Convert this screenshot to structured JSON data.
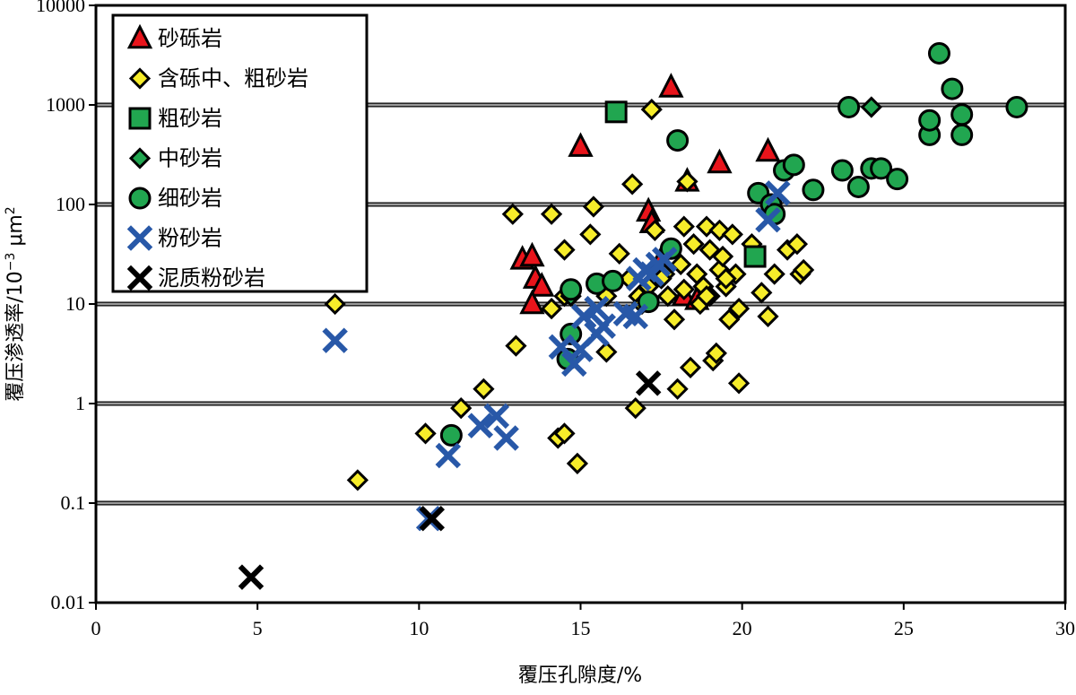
{
  "chart_data": {
    "type": "scatter",
    "x_scale": "linear",
    "y_scale": "log",
    "xlim": [
      0,
      30
    ],
    "ylim": [
      0.01,
      10000
    ],
    "xlabel": "覆压孔隙度/%",
    "ylabel_main": "覆压渗透率/10",
    "ylabel_exp": "−3",
    "ylabel_unit": " μm",
    "ylabel_sq": "2",
    "x_ticks": [
      "0",
      "5",
      "10",
      "15",
      "20",
      "25",
      "30"
    ],
    "y_ticks": [
      "0.01",
      "0.1",
      "1",
      "10",
      "100",
      "1000",
      "10000"
    ],
    "grid": "horizontal",
    "legend_position": "top-left",
    "series": [
      {
        "name": "砂砾岩",
        "marker": "triangle",
        "color": "#e8141b",
        "points": [
          [
            13.2,
            28
          ],
          [
            13.5,
            30
          ],
          [
            13.6,
            18
          ],
          [
            13.8,
            15
          ],
          [
            13.5,
            10
          ],
          [
            15,
            380
          ],
          [
            17.1,
            85
          ],
          [
            17.2,
            65
          ],
          [
            17.8,
            1500
          ],
          [
            18.3,
            170
          ],
          [
            19.3,
            260
          ],
          [
            20.8,
            340
          ],
          [
            17.5,
            28
          ],
          [
            18.2,
            12
          ],
          [
            18.6,
            11
          ]
        ]
      },
      {
        "name": "含砾中、粗砂岩",
        "marker": "diamond",
        "color": "#f6ec2a",
        "points": [
          [
            7.4,
            10
          ],
          [
            8.1,
            0.17
          ],
          [
            10.2,
            0.5
          ],
          [
            11.3,
            0.9
          ],
          [
            12,
            1.4
          ],
          [
            12.9,
            80
          ],
          [
            13,
            3.8
          ],
          [
            14.1,
            80
          ],
          [
            14.3,
            0.45
          ],
          [
            14.5,
            0.5
          ],
          [
            14.5,
            35
          ],
          [
            14.1,
            9
          ],
          [
            14.9,
            0.25
          ],
          [
            15.3,
            50
          ],
          [
            15.4,
            95
          ],
          [
            15.8,
            3.3
          ],
          [
            16.2,
            32
          ],
          [
            16.5,
            18
          ],
          [
            16.7,
            0.9
          ],
          [
            16.6,
            160
          ],
          [
            16.8,
            12
          ],
          [
            17.1,
            15
          ],
          [
            17.2,
            900
          ],
          [
            17.3,
            55
          ],
          [
            17.6,
            20
          ],
          [
            17.7,
            12
          ],
          [
            17.9,
            7
          ],
          [
            18,
            1.4
          ],
          [
            18.1,
            25
          ],
          [
            18.2,
            14
          ],
          [
            18.2,
            60
          ],
          [
            18.4,
            2.3
          ],
          [
            18.5,
            40
          ],
          [
            18.6,
            20
          ],
          [
            18.7,
            10
          ],
          [
            18.8,
            15
          ],
          [
            18.9,
            60
          ],
          [
            19,
            35
          ],
          [
            19,
            12
          ],
          [
            19.1,
            2.7
          ],
          [
            19.2,
            3.2
          ],
          [
            19.3,
            22
          ],
          [
            19.3,
            55
          ],
          [
            19.4,
            30
          ],
          [
            19.5,
            15
          ],
          [
            19.6,
            7
          ],
          [
            19.7,
            50
          ],
          [
            19.8,
            20
          ],
          [
            19.9,
            9
          ],
          [
            19.9,
            1.6
          ],
          [
            20.3,
            40
          ],
          [
            20.6,
            13
          ],
          [
            20.8,
            7.5
          ],
          [
            21,
            20
          ],
          [
            21.4,
            35
          ],
          [
            21.7,
            40
          ],
          [
            21.8,
            20
          ],
          [
            21.9,
            22
          ],
          [
            18.3,
            170
          ],
          [
            15.8,
            12
          ],
          [
            14.5,
            12
          ],
          [
            16.9,
            10
          ],
          [
            17.5,
            18
          ],
          [
            18.9,
            12
          ],
          [
            19.5,
            18
          ]
        ]
      },
      {
        "name": "粗砂岩",
        "marker": "square",
        "color": "#21a650",
        "points": [
          [
            16.1,
            850
          ],
          [
            20.4,
            30
          ]
        ]
      },
      {
        "name": "中砂岩",
        "marker": "diamond",
        "color": "#21a650",
        "points": [
          [
            24,
            950
          ],
          [
            14.7,
            12
          ]
        ]
      },
      {
        "name": "细砂岩",
        "marker": "circle",
        "color": "#21a650",
        "points": [
          [
            11,
            0.48
          ],
          [
            14.6,
            2.8
          ],
          [
            14.7,
            5
          ],
          [
            14.7,
            14
          ],
          [
            15.5,
            16
          ],
          [
            16,
            17
          ],
          [
            17.1,
            10.5
          ],
          [
            17.8,
            36
          ],
          [
            18,
            440
          ],
          [
            20.5,
            130
          ],
          [
            20.9,
            100
          ],
          [
            21,
            80
          ],
          [
            21.3,
            220
          ],
          [
            21.6,
            250
          ],
          [
            22.2,
            140
          ],
          [
            23.1,
            220
          ],
          [
            23.3,
            950
          ],
          [
            23.6,
            150
          ],
          [
            24,
            230
          ],
          [
            24.3,
            230
          ],
          [
            24.8,
            180
          ],
          [
            25.8,
            500
          ],
          [
            25.8,
            700
          ],
          [
            26.1,
            3300
          ],
          [
            26.5,
            1450
          ],
          [
            26.8,
            800
          ],
          [
            26.8,
            500
          ],
          [
            28.5,
            950
          ]
        ]
      },
      {
        "name": "粉砂岩",
        "marker": "x",
        "color": "#2858a8",
        "points": [
          [
            7.4,
            4.3
          ],
          [
            10.3,
            0.07
          ],
          [
            10.9,
            0.3
          ],
          [
            11.9,
            0.6
          ],
          [
            12.4,
            0.75
          ],
          [
            12.7,
            0.45
          ],
          [
            14.4,
            3.7
          ],
          [
            14.8,
            2.5
          ],
          [
            15,
            3.5
          ],
          [
            15.1,
            7.5
          ],
          [
            15.5,
            5
          ],
          [
            15.5,
            9
          ],
          [
            15.7,
            6
          ],
          [
            16.4,
            8
          ],
          [
            16.7,
            7.5
          ],
          [
            16.8,
            18
          ],
          [
            17,
            22
          ],
          [
            17.2,
            20
          ],
          [
            17.4,
            25
          ],
          [
            17.6,
            28
          ],
          [
            20.8,
            70
          ],
          [
            21.1,
            130
          ]
        ]
      },
      {
        "name": "泥质粉砂岩",
        "marker": "x",
        "color": "#000000",
        "points": [
          [
            4.8,
            0.018
          ],
          [
            10.4,
            0.07
          ],
          [
            17.1,
            1.6
          ]
        ]
      }
    ]
  }
}
